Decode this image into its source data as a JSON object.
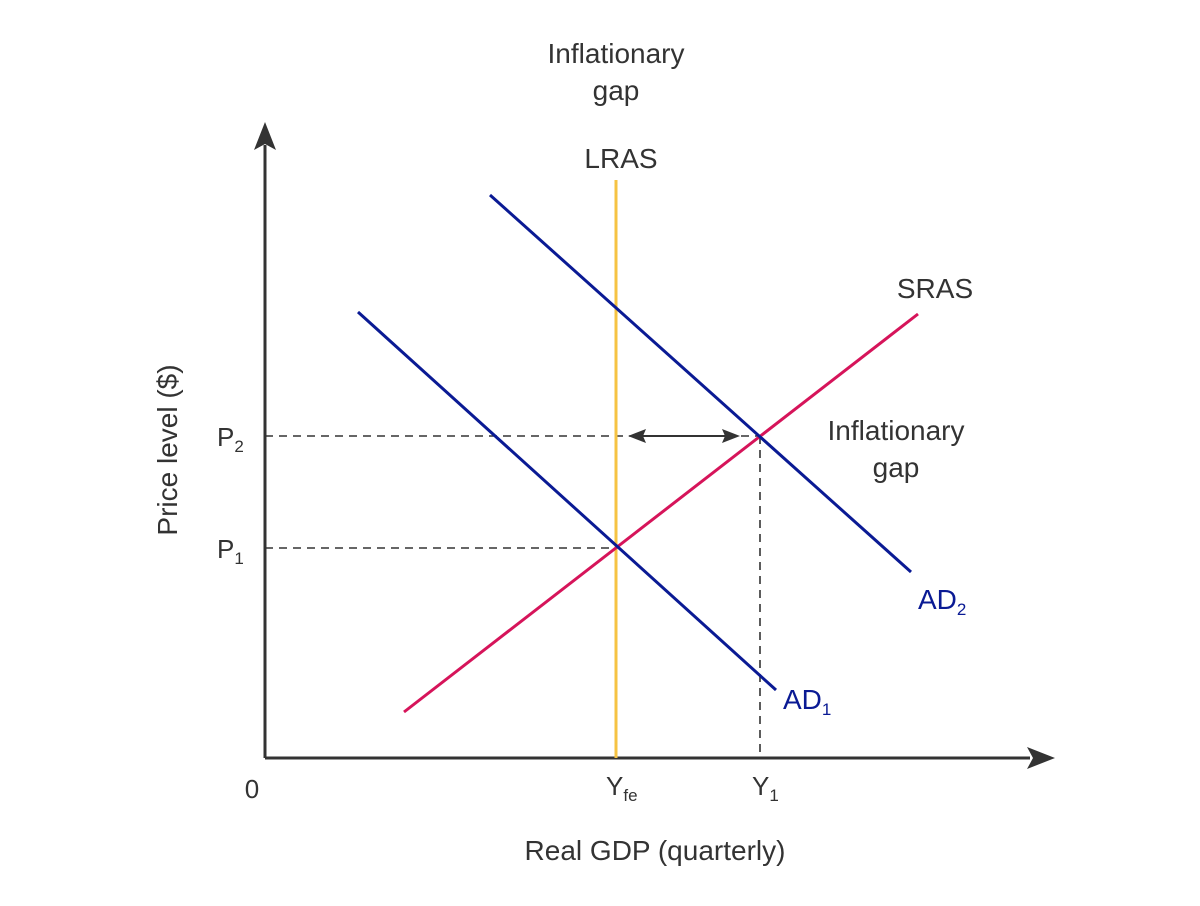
{
  "diagram": {
    "top_label_line1": "Inflationary",
    "top_label_line2": "gap",
    "side_label_line1": "Inflationary",
    "side_label_line2": "gap",
    "origin_label": "0",
    "x_axis_label": "Real GDP (quarterly)",
    "y_axis_label": "Price level ($)",
    "curves": {
      "lras": {
        "label": "LRAS",
        "color": "#f6c343"
      },
      "sras": {
        "label": "SRAS",
        "color": "#d6145a"
      },
      "ad1": {
        "label_main": "AD",
        "label_sub": "1",
        "color": "#0a1a94"
      },
      "ad2": {
        "label_main": "AD",
        "label_sub": "2",
        "color": "#0a1a94"
      }
    },
    "y_ticks": [
      {
        "main": "P",
        "sub": "2"
      },
      {
        "main": "P",
        "sub": "1"
      }
    ],
    "x_ticks": [
      {
        "main": "Y",
        "sub": "fe"
      },
      {
        "main": "Y",
        "sub": "1"
      }
    ],
    "colors": {
      "axis": "#333333",
      "text": "#333333",
      "guides": "#333333"
    }
  }
}
